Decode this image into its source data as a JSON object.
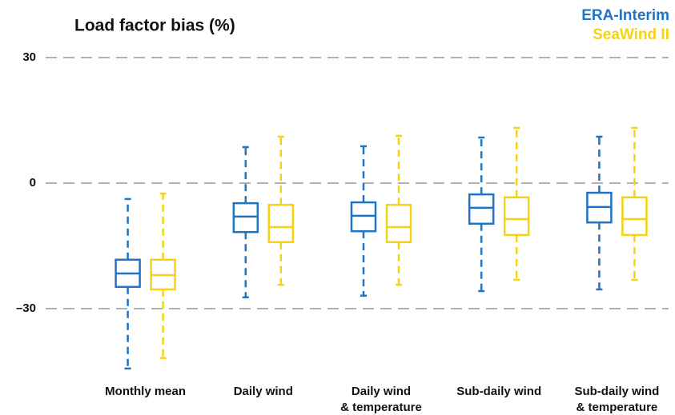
{
  "chart_data": {
    "type": "box",
    "title": "Load factor bias (%)",
    "categories": [
      [
        "Monthly mean"
      ],
      [
        "Daily wind"
      ],
      [
        "Daily wind",
        "& temperature"
      ],
      [
        "Sub-daily wind"
      ],
      [
        "Sub-daily wind",
        "& temperature"
      ]
    ],
    "series": [
      {
        "name": "ERA-Interim",
        "color": "#1f74c6",
        "values": [
          {
            "whislo": -44.3,
            "q1": -24.8,
            "med": -21.6,
            "q3": -18.3,
            "whishi": -3.8
          },
          {
            "whislo": -27.3,
            "q1": -11.7,
            "med": -8.0,
            "q3": -4.8,
            "whishi": 8.6
          },
          {
            "whislo": -26.9,
            "q1": -11.5,
            "med": -7.8,
            "q3": -4.6,
            "whishi": 8.8
          },
          {
            "whislo": -25.8,
            "q1": -9.7,
            "med": -5.9,
            "q3": -2.7,
            "whishi": 10.9
          },
          {
            "whislo": -25.4,
            "q1": -9.4,
            "med": -5.7,
            "q3": -2.3,
            "whishi": 11.1
          }
        ]
      },
      {
        "name": "SeaWind II",
        "color": "#f5d312",
        "values": [
          {
            "whislo": -41.8,
            "q1": -25.4,
            "med": -22.0,
            "q3": -18.3,
            "whishi": -2.5
          },
          {
            "whislo": -24.3,
            "q1": -14.1,
            "med": -10.5,
            "q3": -5.2,
            "whishi": 11.1
          },
          {
            "whislo": -24.3,
            "q1": -14.1,
            "med": -10.5,
            "q3": -5.2,
            "whishi": 11.3
          },
          {
            "whislo": -23.1,
            "q1": -12.4,
            "med": -8.6,
            "q3": -3.4,
            "whishi": 13.2
          },
          {
            "whislo": -23.1,
            "q1": -12.4,
            "med": -8.6,
            "q3": -3.4,
            "whishi": 13.2
          }
        ]
      }
    ],
    "ylim": [
      -45,
      30
    ],
    "yticks": [
      30,
      0,
      {
        "value": -30,
        "label": "–30"
      }
    ],
    "grid": true,
    "legend": "top-right"
  }
}
